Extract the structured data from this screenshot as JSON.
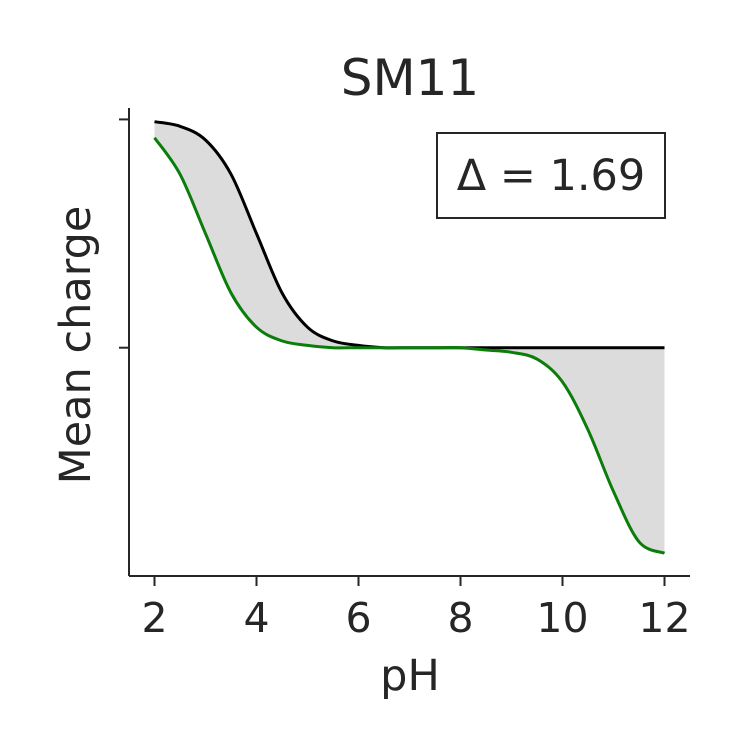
{
  "chart_data": {
    "type": "line",
    "title": "SM11",
    "xlabel": "pH",
    "ylabel": "Mean charge",
    "xlim": [
      1.5,
      12.5
    ],
    "ylim": [
      -1.0,
      1.05
    ],
    "x_ticks": [
      2,
      4,
      6,
      8,
      10,
      12
    ],
    "x_tick_labels": [
      "2",
      "4",
      "6",
      "8",
      "10",
      "12"
    ],
    "y_ticks": [
      0,
      1
    ],
    "annotation": "Δ = 1.69",
    "grid": false,
    "fill_between_series": true,
    "fill_color": "#dcdcdc",
    "x": [
      2,
      2.5,
      3,
      3.5,
      4,
      4.5,
      5,
      5.5,
      6,
      6.5,
      7,
      7.5,
      8,
      8.5,
      9,
      9.5,
      10,
      10.5,
      11,
      11.5,
      12
    ],
    "series": [
      {
        "color": "#000000",
        "values": [
          0.99,
          0.97,
          0.91,
          0.76,
          0.5,
          0.24,
          0.09,
          0.03,
          0.01,
          0.0,
          0.0,
          0.0,
          0.0,
          0.0,
          0.0,
          0.0,
          0.0,
          0.0,
          0.0,
          0.0,
          0.0
        ]
      },
      {
        "color": "#0a7d0a",
        "values": [
          0.92,
          0.76,
          0.5,
          0.24,
          0.09,
          0.03,
          0.01,
          0.0,
          0.0,
          0.0,
          0.0,
          0.0,
          0.0,
          -0.01,
          -0.02,
          -0.05,
          -0.15,
          -0.36,
          -0.63,
          -0.85,
          -0.9
        ]
      }
    ]
  }
}
